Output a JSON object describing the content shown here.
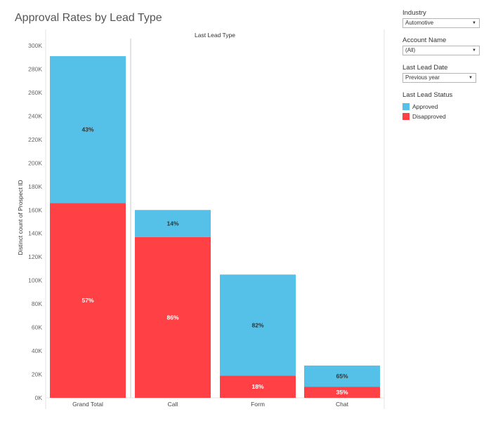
{
  "title": "Approval Rates by Lead Type",
  "filters": {
    "industry": {
      "label": "Industry",
      "value": "Automotive"
    },
    "account": {
      "label": "Account Name",
      "value": "(All)"
    },
    "lead_date": {
      "label": "Last Lead Date",
      "value": "Previous year"
    }
  },
  "legend": {
    "title": "Last Lead Status",
    "items": [
      {
        "label": "Approved",
        "color": "#55C1E8"
      },
      {
        "label": "Disapproved",
        "color": "#FF4146"
      }
    ]
  },
  "chart_data": {
    "type": "bar",
    "stacked": true,
    "title": "Approval Rates by Lead Type",
    "column_header": "Last Lead Type",
    "ylabel": "Distinct count of Prospect ID",
    "ylim": [
      0,
      300000
    ],
    "y_ticks": [
      0,
      20000,
      40000,
      60000,
      80000,
      100000,
      120000,
      140000,
      160000,
      180000,
      200000,
      220000,
      240000,
      260000,
      280000,
      300000
    ],
    "y_tick_labels": [
      "0K",
      "20K",
      "40K",
      "60K",
      "80K",
      "100K",
      "120K",
      "140K",
      "160K",
      "180K",
      "200K",
      "220K",
      "240K",
      "260K",
      "280K",
      "300K"
    ],
    "categories": [
      "Grand Total",
      "Call",
      "Form",
      "Chat"
    ],
    "series": [
      {
        "name": "Disapproved",
        "color": "#FF4146",
        "values": [
          166000,
          137000,
          19000,
          9500
        ],
        "labels": [
          "57%",
          "86%",
          "18%",
          "35%"
        ]
      },
      {
        "name": "Approved",
        "color": "#55C1E8",
        "values": [
          125000,
          23000,
          86000,
          18000
        ],
        "labels": [
          "43%",
          "14%",
          "82%",
          "65%"
        ]
      }
    ],
    "grid": false,
    "legend_position": "right"
  }
}
